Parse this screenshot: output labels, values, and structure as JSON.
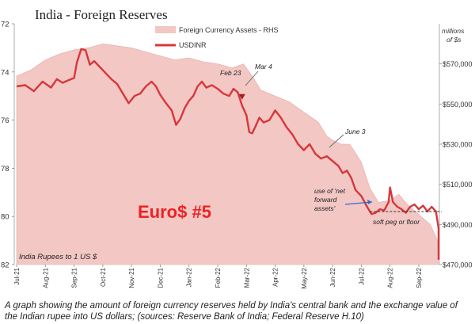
{
  "chart_data": {
    "type": "line+area",
    "title": "India - Foreign Reserves",
    "legend": [
      {
        "name": "Foreign Currency Assets - RHS",
        "kind": "area",
        "color": "#f2c7c4"
      },
      {
        "name": "USDINR",
        "kind": "line",
        "color": "#d7373a"
      }
    ],
    "left_axis": {
      "label": "India Rupees to 1 US $",
      "min": 72,
      "max": 82,
      "inverted": true,
      "ticks": [
        72,
        74,
        76,
        78,
        80,
        82
      ]
    },
    "right_axis": {
      "label_line1": "millions",
      "label_line2": "of $s",
      "min": 470000,
      "max": 590000,
      "ticks": [
        470000,
        490000,
        510000,
        530000,
        550000,
        570000
      ],
      "tick_labels": [
        "$470,000",
        "$490,000",
        "$510,000",
        "$530,000",
        "$550,000",
        "$570,000"
      ]
    },
    "x_labels": [
      "Jul-21",
      "Aug-21",
      "Sep-21",
      "Oct-21",
      "Nov-21",
      "Dec-21",
      "Jan-22",
      "Feb-22",
      "Mar-22",
      "Apr-22",
      "May-22",
      "Jun-22",
      "Jul-22",
      "Aug-22",
      "Sep-22"
    ],
    "reserves_series": [
      {
        "t": 0.0,
        "v": 564000
      },
      {
        "t": 0.5,
        "v": 567000
      },
      {
        "t": 1.0,
        "v": 572000
      },
      {
        "t": 1.5,
        "v": 575000
      },
      {
        "t": 2.0,
        "v": 577000
      },
      {
        "t": 2.5,
        "v": 578000
      },
      {
        "t": 3.0,
        "v": 580000
      },
      {
        "t": 3.5,
        "v": 579000
      },
      {
        "t": 4.0,
        "v": 578000
      },
      {
        "t": 4.5,
        "v": 576000
      },
      {
        "t": 5.0,
        "v": 574000
      },
      {
        "t": 5.5,
        "v": 572000
      },
      {
        "t": 6.0,
        "v": 573000
      },
      {
        "t": 6.5,
        "v": 571000
      },
      {
        "t": 7.0,
        "v": 570000
      },
      {
        "t": 7.5,
        "v": 568000
      },
      {
        "t": 7.9,
        "v": 570000
      },
      {
        "t": 8.2,
        "v": 564000
      },
      {
        "t": 8.5,
        "v": 557000
      },
      {
        "t": 9.0,
        "v": 554000
      },
      {
        "t": 9.5,
        "v": 551000
      },
      {
        "t": 10.0,
        "v": 546000
      },
      {
        "t": 10.5,
        "v": 541000
      },
      {
        "t": 10.8,
        "v": 534000
      },
      {
        "t": 11.0,
        "v": 532000
      },
      {
        "t": 11.3,
        "v": 530000
      },
      {
        "t": 11.6,
        "v": 530000
      },
      {
        "t": 12.0,
        "v": 521000
      },
      {
        "t": 12.3,
        "v": 508000
      },
      {
        "t": 12.6,
        "v": 501000
      },
      {
        "t": 13.0,
        "v": 502000
      },
      {
        "t": 13.3,
        "v": 505000
      },
      {
        "t": 13.6,
        "v": 500000
      },
      {
        "t": 14.0,
        "v": 495000
      },
      {
        "t": 14.4,
        "v": 490000
      },
      {
        "t": 14.8,
        "v": 480000
      },
      {
        "t": 15.2,
        "v": 468000
      }
    ],
    "usdinr_series": [
      {
        "t": 0.0,
        "v": 74.6
      },
      {
        "t": 0.3,
        "v": 74.55
      },
      {
        "t": 0.6,
        "v": 74.8
      },
      {
        "t": 0.9,
        "v": 74.4
      },
      {
        "t": 1.2,
        "v": 74.65
      },
      {
        "t": 1.4,
        "v": 74.3
      },
      {
        "t": 1.6,
        "v": 74.45
      },
      {
        "t": 1.8,
        "v": 74.35
      },
      {
        "t": 2.0,
        "v": 74.25
      },
      {
        "t": 2.1,
        "v": 73.6
      },
      {
        "t": 2.25,
        "v": 73.05
      },
      {
        "t": 2.4,
        "v": 73.1
      },
      {
        "t": 2.55,
        "v": 73.7
      },
      {
        "t": 2.7,
        "v": 73.55
      },
      {
        "t": 2.9,
        "v": 73.8
      },
      {
        "t": 3.1,
        "v": 74.05
      },
      {
        "t": 3.3,
        "v": 74.3
      },
      {
        "t": 3.5,
        "v": 74.5
      },
      {
        "t": 3.7,
        "v": 74.9
      },
      {
        "t": 3.9,
        "v": 75.3
      },
      {
        "t": 4.1,
        "v": 75.0
      },
      {
        "t": 4.3,
        "v": 74.9
      },
      {
        "t": 4.5,
        "v": 74.6
      },
      {
        "t": 4.7,
        "v": 74.4
      },
      {
        "t": 4.85,
        "v": 74.6
      },
      {
        "t": 5.0,
        "v": 74.95
      },
      {
        "t": 5.2,
        "v": 75.3
      },
      {
        "t": 5.4,
        "v": 75.6
      },
      {
        "t": 5.55,
        "v": 76.2
      },
      {
        "t": 5.7,
        "v": 75.95
      },
      {
        "t": 5.85,
        "v": 75.5
      },
      {
        "t": 6.0,
        "v": 75.2
      },
      {
        "t": 6.15,
        "v": 75.0
      },
      {
        "t": 6.3,
        "v": 74.6
      },
      {
        "t": 6.45,
        "v": 74.4
      },
      {
        "t": 6.6,
        "v": 74.65
      },
      {
        "t": 6.8,
        "v": 74.55
      },
      {
        "t": 7.0,
        "v": 74.7
      },
      {
        "t": 7.2,
        "v": 74.9
      },
      {
        "t": 7.4,
        "v": 75.0
      },
      {
        "t": 7.55,
        "v": 74.7
      },
      {
        "t": 7.7,
        "v": 74.85
      },
      {
        "t": 7.85,
        "v": 75.4
      },
      {
        "t": 8.0,
        "v": 75.8
      },
      {
        "t": 8.1,
        "v": 76.5
      },
      {
        "t": 8.2,
        "v": 76.55
      },
      {
        "t": 8.3,
        "v": 76.3
      },
      {
        "t": 8.45,
        "v": 75.9
      },
      {
        "t": 8.6,
        "v": 76.1
      },
      {
        "t": 8.8,
        "v": 76.0
      },
      {
        "t": 9.0,
        "v": 75.6
      },
      {
        "t": 9.2,
        "v": 75.9
      },
      {
        "t": 9.4,
        "v": 76.3
      },
      {
        "t": 9.6,
        "v": 76.6
      },
      {
        "t": 9.8,
        "v": 77.0
      },
      {
        "t": 10.0,
        "v": 77.25
      },
      {
        "t": 10.2,
        "v": 77.0
      },
      {
        "t": 10.4,
        "v": 77.4
      },
      {
        "t": 10.6,
        "v": 77.6
      },
      {
        "t": 10.8,
        "v": 77.5
      },
      {
        "t": 11.0,
        "v": 77.7
      },
      {
        "t": 11.2,
        "v": 77.9
      },
      {
        "t": 11.35,
        "v": 78.2
      },
      {
        "t": 11.5,
        "v": 78.1
      },
      {
        "t": 11.65,
        "v": 78.4
      },
      {
        "t": 11.8,
        "v": 78.9
      },
      {
        "t": 12.0,
        "v": 79.15
      },
      {
        "t": 12.2,
        "v": 79.6
      },
      {
        "t": 12.35,
        "v": 79.9
      },
      {
        "t": 12.5,
        "v": 79.85
      },
      {
        "t": 12.65,
        "v": 79.7
      },
      {
        "t": 12.8,
        "v": 79.75
      },
      {
        "t": 12.95,
        "v": 79.4
      },
      {
        "t": 13.0,
        "v": 78.8
      },
      {
        "t": 13.1,
        "v": 79.4
      },
      {
        "t": 13.25,
        "v": 79.6
      },
      {
        "t": 13.4,
        "v": 79.7
      },
      {
        "t": 13.55,
        "v": 79.85
      },
      {
        "t": 13.7,
        "v": 79.6
      },
      {
        "t": 13.85,
        "v": 79.5
      },
      {
        "t": 14.0,
        "v": 79.7
      },
      {
        "t": 14.15,
        "v": 79.55
      },
      {
        "t": 14.3,
        "v": 79.8
      },
      {
        "t": 14.45,
        "v": 79.6
      },
      {
        "t": 14.6,
        "v": 79.8
      },
      {
        "t": 14.75,
        "v": 80.5
      },
      {
        "t": 14.9,
        "v": 81.3
      },
      {
        "t": 15.05,
        "v": 81.6
      },
      {
        "t": 15.2,
        "v": 81.8
      }
    ],
    "soft_peg_level": 79.8,
    "annotations": [
      {
        "text": "Feb 23",
        "t": 7.85,
        "v": 74.75
      },
      {
        "text": "Mar 4",
        "t": 8.1,
        "v": 74.75
      },
      {
        "text": "June 3",
        "t": 11.0,
        "v": 77.6
      },
      {
        "text": "use of 'net",
        "t": 12.3,
        "v": 79.5
      },
      {
        "text": "forward",
        "t": 12.3,
        "v": 79.5
      },
      {
        "text": "assets'",
        "t": 12.3,
        "v": 79.5
      },
      {
        "text": "soft peg or floor",
        "t": 12.9,
        "v": 79.8
      }
    ],
    "watermark": "Euro$ #5"
  },
  "caption": "A graph showing the amount of foreign currency reserves held by India's central bank and the exchange value of the Indian rupee into US dollars; (sources: Reserve Bank of India; Federal Reserve H.10)"
}
